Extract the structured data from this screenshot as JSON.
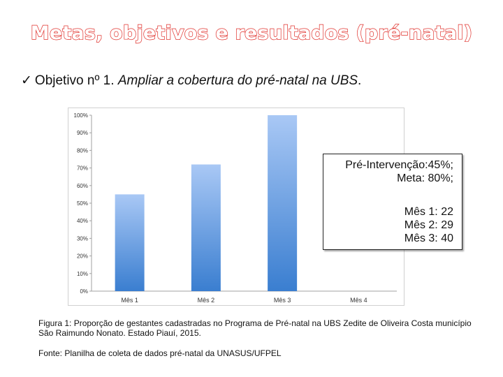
{
  "slide": {
    "title": "Metas, objetivos e resultados (pré-natal)",
    "objective_check": "✓",
    "objective_prefix": "Objetivo nº 1. ",
    "objective_text": "Ampliar a cobertura do pré-natal na UBS",
    "objective_end": ".",
    "annotation_line1": "Pré-Intervenção:45%;",
    "annotation_line2": "Meta: 80%;",
    "annotation_month1": "Mês 1: 22",
    "annotation_month2": "Mês 2: 29",
    "annotation_month3": "Mês 3: 40",
    "caption": "Figura 1: Proporção de gestantes cadastradas no Programa de Pré-natal na UBS Zedite de Oliveira Costa município São Raimundo Nonato. Estado Piauí, 2015.",
    "source": "Fonte: Planilha de coleta de dados pré-natal da UNASUS/UFPEL"
  },
  "chart_data": {
    "type": "bar",
    "categories": [
      "Mês 1",
      "Mês 2",
      "Mês 3",
      "Mês 4"
    ],
    "values": [
      55,
      72,
      100,
      null
    ],
    "yticks": [
      "0%",
      "10%",
      "20%",
      "30%",
      "40%",
      "50%",
      "60%",
      "70%",
      "80%",
      "90%",
      "100%"
    ],
    "ylim": [
      0,
      100
    ],
    "grid": false,
    "legend": "none",
    "colors": {
      "bar_top": "#a9c8f5",
      "bar_bottom": "#3a7ed0",
      "axis": "#a0a0a0"
    }
  }
}
